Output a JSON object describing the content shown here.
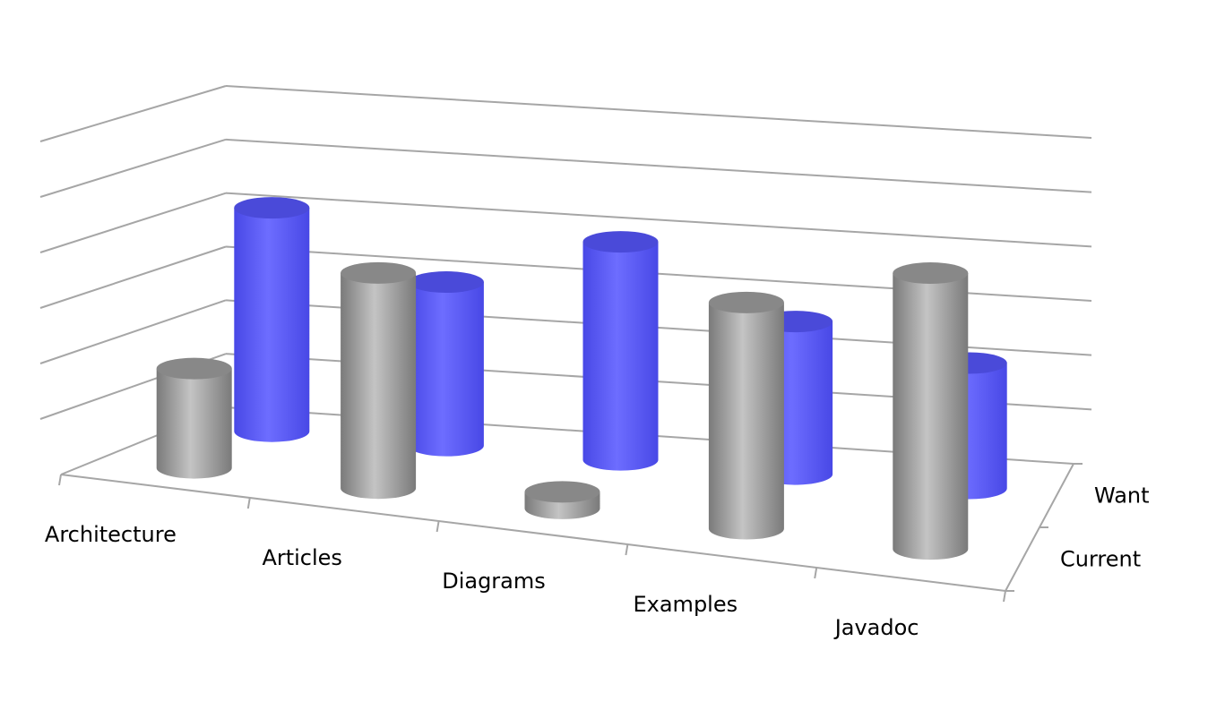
{
  "chart_data": {
    "type": "bar",
    "shape": "3d-cylinder",
    "categories": [
      "Architecture",
      "Articles",
      "Diagrams",
      "Examples",
      "Javadoc"
    ],
    "series": [
      {
        "name": "Current",
        "values": [
          1.8,
          3.9,
          0.3,
          4.1,
          5.0
        ]
      },
      {
        "name": "Want",
        "values": [
          4.1,
          3.0,
          4.0,
          2.8,
          2.3
        ]
      }
    ],
    "ylim": [
      0,
      6
    ],
    "grid": true,
    "legend": "none",
    "title": "",
    "xlabel": "",
    "ylabel": "",
    "colors": {
      "Current": "#a6a6a6",
      "Want": "#5b5bff",
      "grid": "#a6a6a6",
      "background": "#ffffff"
    }
  }
}
